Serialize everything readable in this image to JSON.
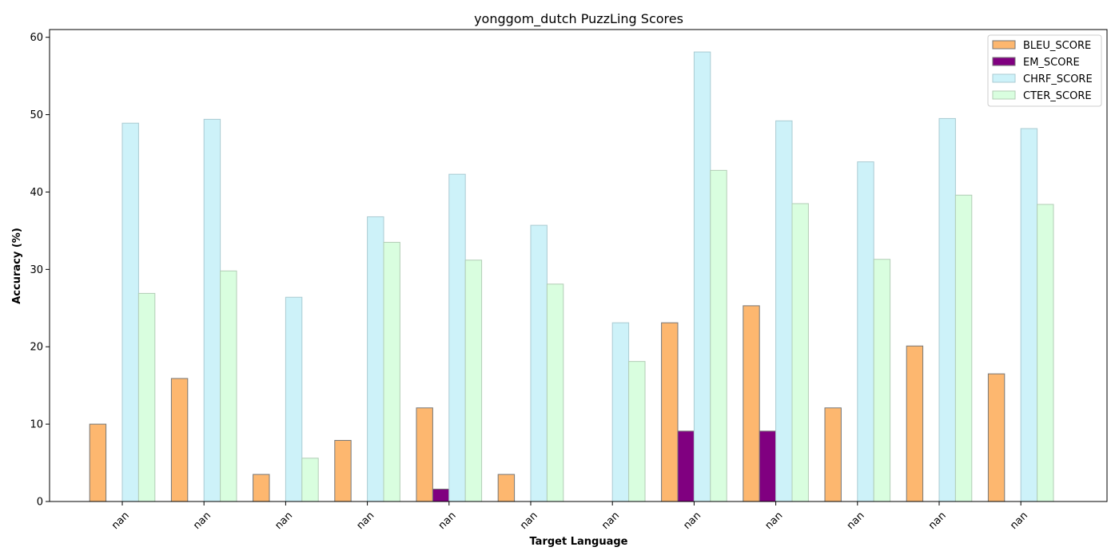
{
  "chart_data": {
    "type": "bar",
    "title": "yonggom_dutch PuzzLing Scores",
    "xlabel": "Target Language",
    "ylabel": "Accuracy (%)",
    "ylim": [
      0,
      61
    ],
    "yticks": [
      0,
      10,
      20,
      30,
      40,
      50,
      60
    ],
    "categories": [
      "nan",
      "nan",
      "nan",
      "nan",
      "nan",
      "nan",
      "nan",
      "nan",
      "nan",
      "nan",
      "nan",
      "nan"
    ],
    "legend_position": "top-right",
    "grid": false,
    "series": [
      {
        "name": "BLEU_SCORE",
        "color": "#fdb76f",
        "edge": "#777777",
        "values": [
          10.0,
          15.9,
          3.5,
          7.9,
          12.1,
          3.5,
          0.0,
          23.1,
          25.3,
          12.1,
          20.1,
          16.5
        ]
      },
      {
        "name": "EM_SCORE",
        "color": "#800080",
        "edge": "#777777",
        "values": [
          0.0,
          0.0,
          0.0,
          0.0,
          1.6,
          0.0,
          0.0,
          9.1,
          9.1,
          0.0,
          0.0,
          0.0
        ]
      },
      {
        "name": "CHRF_SCORE",
        "color": "#cdf2f9",
        "edge": "#aacbd2",
        "values": [
          48.9,
          49.4,
          26.4,
          36.8,
          42.3,
          35.7,
          23.1,
          58.1,
          49.2,
          43.9,
          49.5,
          48.2
        ]
      },
      {
        "name": "CTER_SCORE",
        "color": "#d9fedf",
        "edge": "#b2cdb6",
        "values": [
          26.9,
          29.8,
          5.6,
          33.5,
          31.2,
          28.1,
          18.1,
          42.8,
          38.5,
          31.3,
          39.6,
          38.4
        ]
      }
    ]
  }
}
